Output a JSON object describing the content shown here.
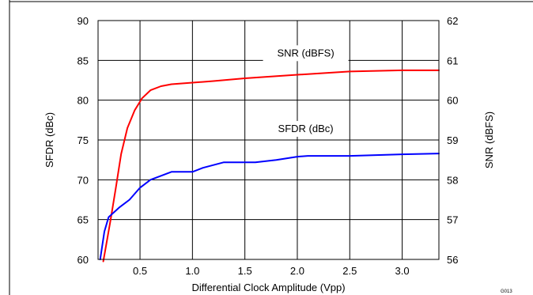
{
  "chart_data": {
    "type": "line",
    "xlabel": "Differential Clock Amplitude (Vpp)",
    "ylabel_left": "SFDR (dBc)",
    "ylabel_right": "SNR (dBFS)",
    "figure_id": "G013",
    "xlim": [
      0.1,
      3.35
    ],
    "ylim_left": [
      60,
      90
    ],
    "ylim_right": [
      56,
      62
    ],
    "xticks": [
      0.5,
      1.0,
      1.5,
      2.0,
      2.5,
      3.0
    ],
    "xtick_labels": [
      "0.5",
      "1.0",
      "1.5",
      "2.0",
      "2.5",
      "3.0"
    ],
    "yticks_left": [
      60,
      65,
      70,
      75,
      80,
      85,
      90
    ],
    "yticks_right": [
      56,
      57,
      58,
      59,
      60,
      61,
      62
    ],
    "grid": true,
    "series": [
      {
        "name": "SNR (dBFS)",
        "axis": "right",
        "color": "#ff0000",
        "label_anchor": [
          2.08,
          61.1
        ],
        "x": [
          0.15,
          0.18,
          0.22,
          0.27,
          0.32,
          0.38,
          0.45,
          0.52,
          0.6,
          0.7,
          0.8,
          0.9,
          1.0,
          1.2,
          1.5,
          2.0,
          2.5,
          3.0,
          3.35
        ],
        "values": [
          55.95,
          56.4,
          57.0,
          57.8,
          58.65,
          59.3,
          59.75,
          60.05,
          60.25,
          60.35,
          60.4,
          60.42,
          60.44,
          60.48,
          60.55,
          60.64,
          60.72,
          60.75,
          60.75
        ]
      },
      {
        "name": "SFDR (dBc)",
        "axis": "left",
        "color": "#0000ff",
        "label_anchor": [
          2.08,
          76.0
        ],
        "x": [
          0.12,
          0.16,
          0.2,
          0.25,
          0.3,
          0.4,
          0.5,
          0.6,
          0.7,
          0.8,
          0.9,
          1.0,
          1.1,
          1.3,
          1.6,
          1.8,
          2.0,
          2.1,
          2.5,
          3.0,
          3.35
        ],
        "values": [
          60.0,
          63.5,
          65.3,
          65.9,
          66.5,
          67.5,
          69.0,
          70.0,
          70.5,
          71.0,
          71.0,
          71.0,
          71.5,
          72.2,
          72.2,
          72.5,
          72.9,
          73.0,
          73.0,
          73.2,
          73.3
        ]
      }
    ]
  }
}
